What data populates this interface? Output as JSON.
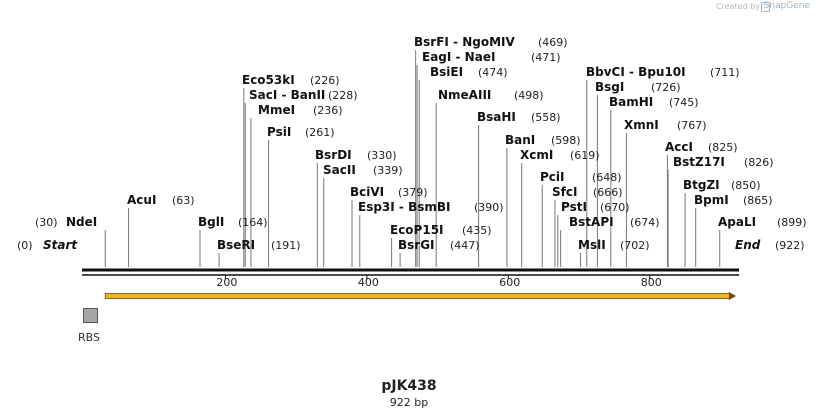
{
  "credit": {
    "prefix": "Created by",
    "brand": "SnapGene"
  },
  "plasmid": {
    "name": "pJK438",
    "size_label": "922 bp",
    "length": 922
  },
  "ruler_ticks": [
    {
      "label": "200",
      "pos": 200
    },
    {
      "label": "400",
      "pos": 400
    },
    {
      "label": "600",
      "pos": 600
    },
    {
      "label": "800",
      "pos": 800
    }
  ],
  "feature": {
    "name": "RBS"
  },
  "orf": {
    "start": 30,
    "end": 922,
    "color": "#f0b12a"
  },
  "sites": [
    {
      "name": "Start",
      "pos_label": "(0)",
      "pos": 0,
      "style": "italic"
    },
    {
      "name": "NdeI",
      "pos_label": "(30)",
      "pos": 30
    },
    {
      "name": "AcuI",
      "pos_label": "(63)",
      "pos": 63
    },
    {
      "name": "BglI",
      "pos_label": "(164)",
      "pos": 164
    },
    {
      "name": "BseRI",
      "pos_label": "(191)",
      "pos": 191
    },
    {
      "name": "Eco53kI",
      "pos_label": "(226)",
      "pos": 226
    },
    {
      "name": "SacI - BanII",
      "pos_label": "(228)",
      "pos": 228
    },
    {
      "name": "MmeI",
      "pos_label": "(236)",
      "pos": 236
    },
    {
      "name": "PsiI",
      "pos_label": "(261)",
      "pos": 261
    },
    {
      "name": "BsrDI",
      "pos_label": "(330)",
      "pos": 330
    },
    {
      "name": "SacII",
      "pos_label": "(339)",
      "pos": 339
    },
    {
      "name": "BciVI",
      "pos_label": "(379)",
      "pos": 379
    },
    {
      "name": "Esp3I - BsmBI",
      "pos_label": "(390)",
      "pos": 390
    },
    {
      "name": "EcoP15I",
      "pos_label": "(435)",
      "pos": 435
    },
    {
      "name": "BsrGI",
      "pos_label": "(447)",
      "pos": 447
    },
    {
      "name": "BsrFI - NgoMIV",
      "pos_label": "(469)",
      "pos": 469
    },
    {
      "name": "EagI - NaeI",
      "pos_label": "(471)",
      "pos": 471
    },
    {
      "name": "BsiEI",
      "pos_label": "(474)",
      "pos": 474
    },
    {
      "name": "NmeAIII",
      "pos_label": "(498)",
      "pos": 498
    },
    {
      "name": "BsaHI",
      "pos_label": "(558)",
      "pos": 558
    },
    {
      "name": "BanI",
      "pos_label": "(598)",
      "pos": 598
    },
    {
      "name": "XcmI",
      "pos_label": "(619)",
      "pos": 619
    },
    {
      "name": "PciI",
      "pos_label": "(648)",
      "pos": 648
    },
    {
      "name": "SfcI",
      "pos_label": "(666)",
      "pos": 666
    },
    {
      "name": "PstI",
      "pos_label": "(670)",
      "pos": 670
    },
    {
      "name": "BstAPI",
      "pos_label": "(674)",
      "pos": 674
    },
    {
      "name": "MslI",
      "pos_label": "(702)",
      "pos": 702
    },
    {
      "name": "BbvCI - Bpu10I",
      "pos_label": "(711)",
      "pos": 711
    },
    {
      "name": "BsgI",
      "pos_label": "(726)",
      "pos": 726
    },
    {
      "name": "BamHI",
      "pos_label": "(745)",
      "pos": 745
    },
    {
      "name": "XmnI",
      "pos_label": "(767)",
      "pos": 767
    },
    {
      "name": "AccI",
      "pos_label": "(825)",
      "pos": 825
    },
    {
      "name": "BstZ17I",
      "pos_label": "(826)",
      "pos": 826
    },
    {
      "name": "BtgZI",
      "pos_label": "(850)",
      "pos": 850
    },
    {
      "name": "BpmI",
      "pos_label": "(865)",
      "pos": 865
    },
    {
      "name": "ApaLI",
      "pos_label": "(899)",
      "pos": 899
    },
    {
      "name": "End",
      "pos_label": "(922)",
      "pos": 922,
      "style": "italic"
    }
  ]
}
